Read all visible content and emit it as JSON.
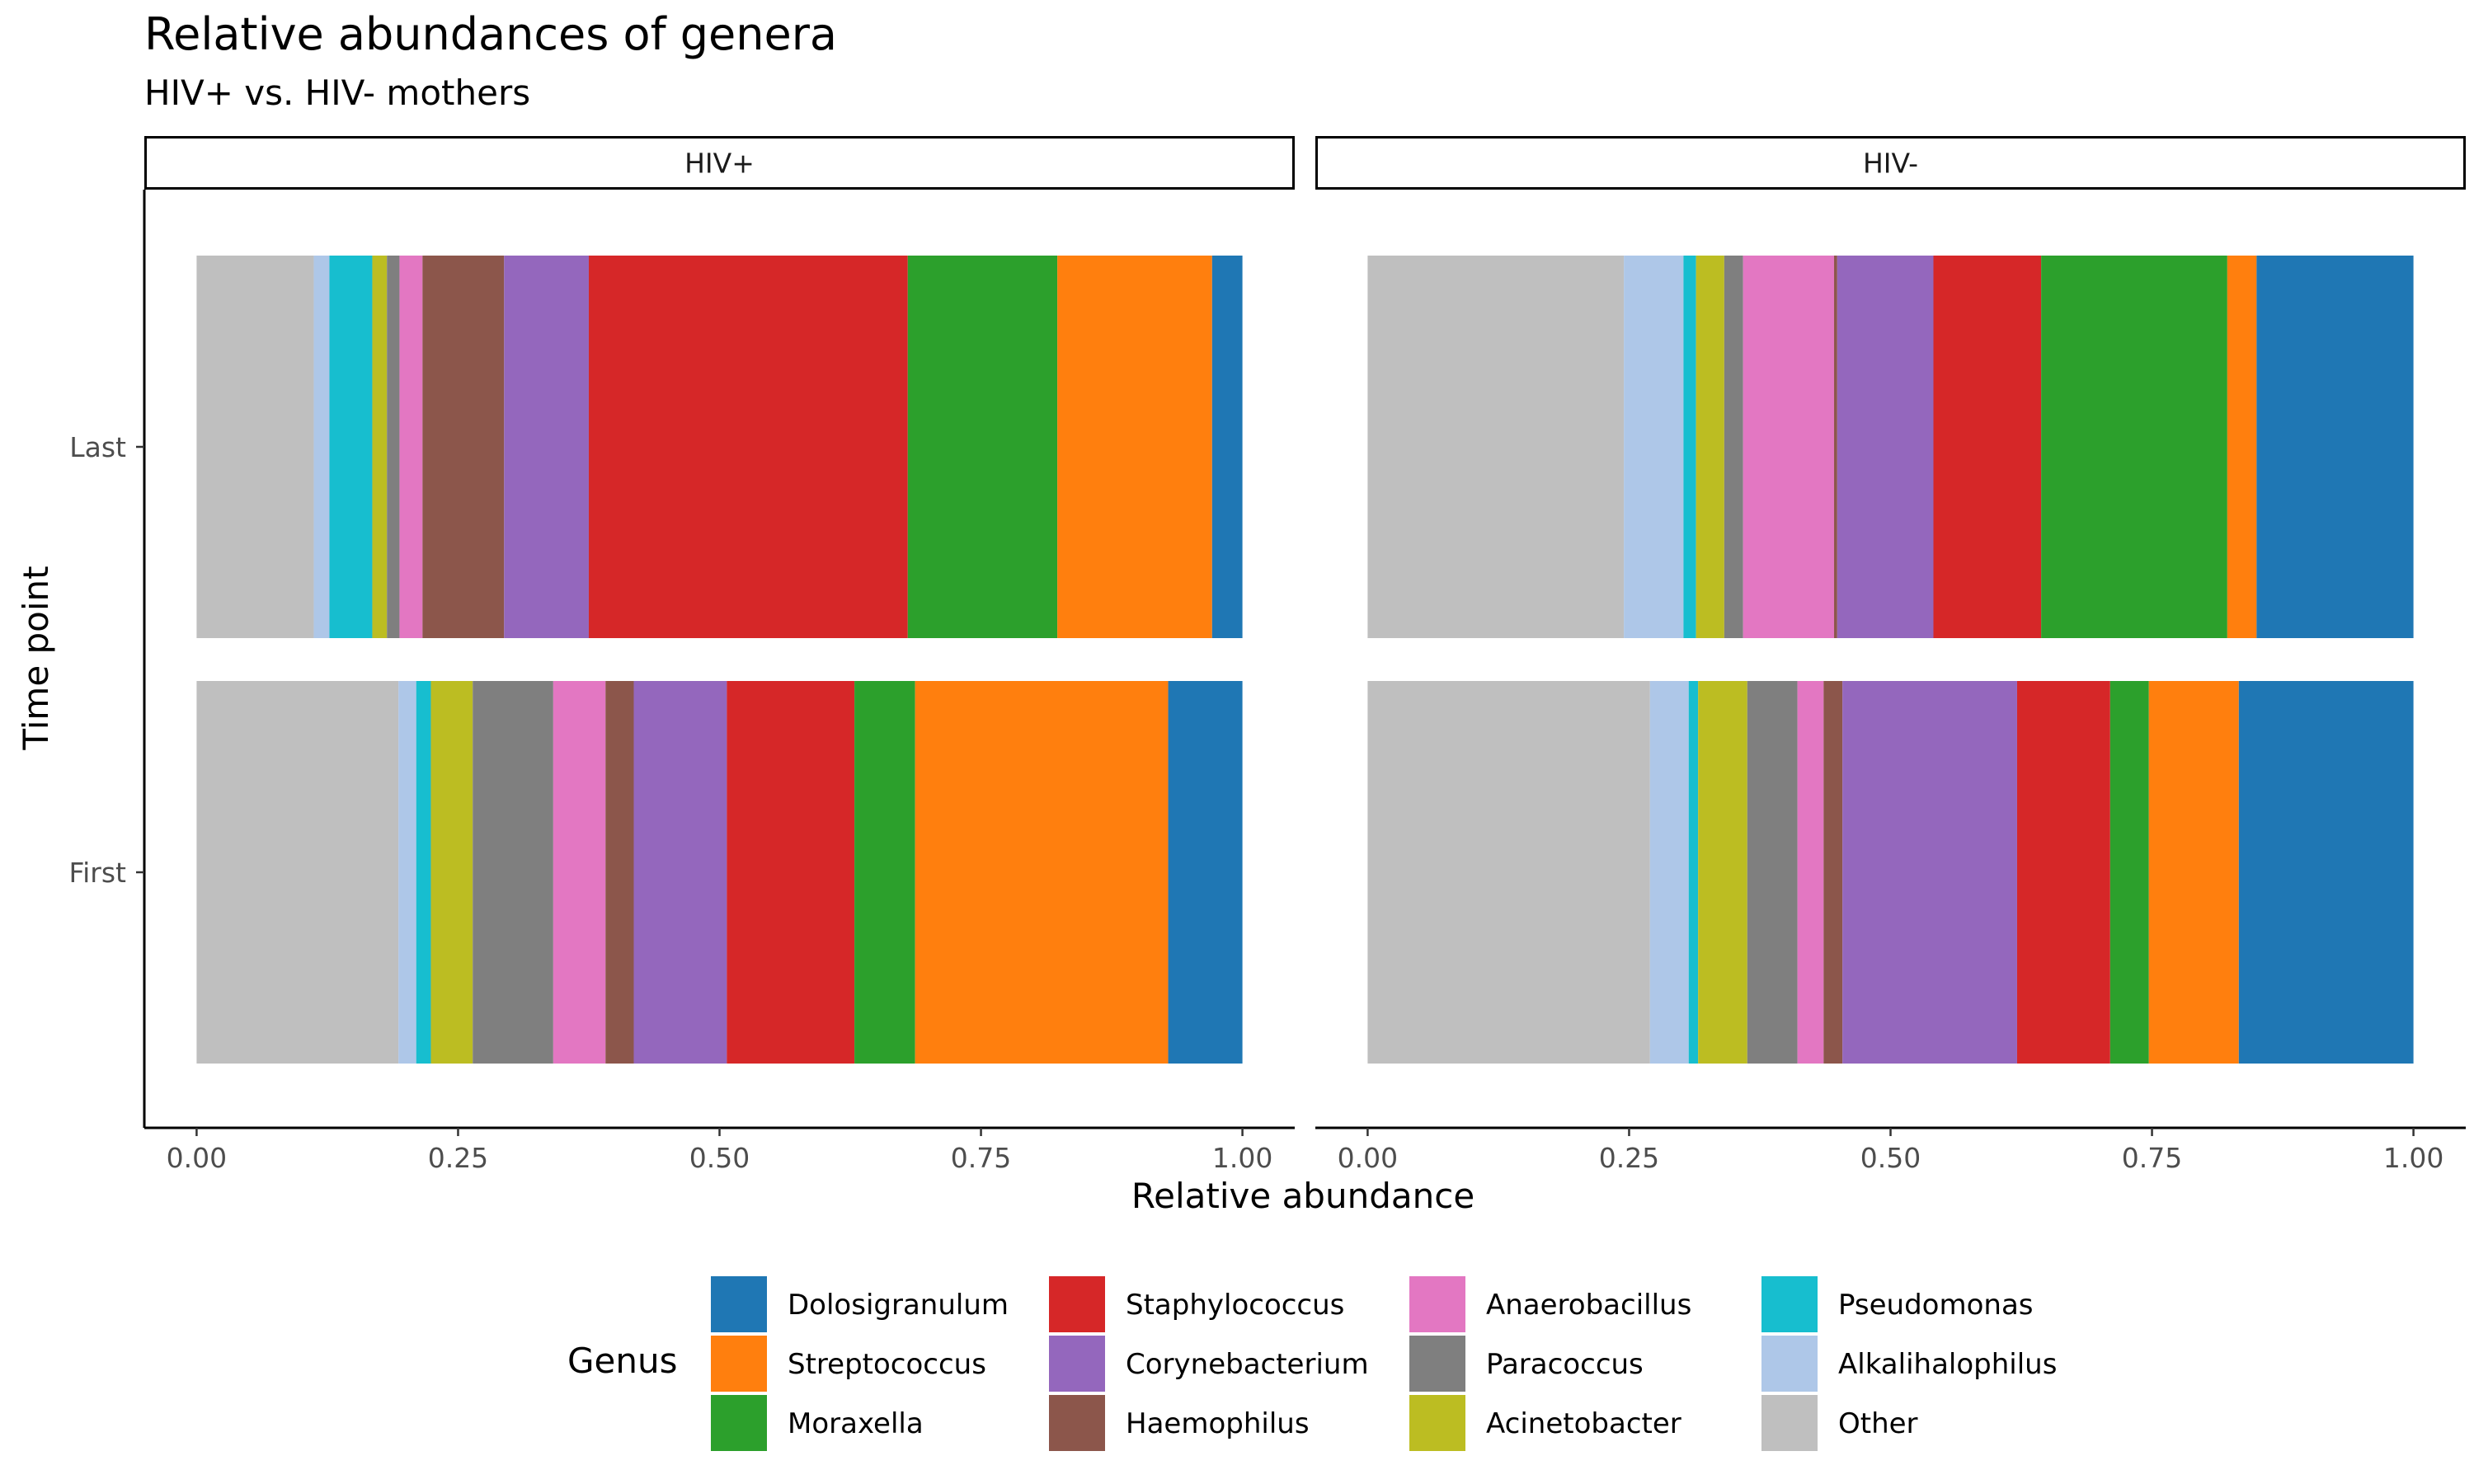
{
  "chart_data": {
    "type": "bar",
    "orientation": "horizontal",
    "stacked": true,
    "title": "Relative abundances of genera",
    "subtitle": "HIV+ vs. HIV- mothers",
    "xlabel": "Relative abundance",
    "ylabel": "Time point",
    "xlim": [
      0,
      1
    ],
    "x_ticks": [
      "0.00",
      "0.25",
      "0.50",
      "0.75",
      "1.00"
    ],
    "categories": [
      "Last",
      "First"
    ],
    "grid": false,
    "legend": {
      "title": "Genus",
      "position": "bottom"
    },
    "stack_order": [
      "Other",
      "Alkalihalophilus",
      "Pseudomonas",
      "Acinetobacter",
      "Paracoccus",
      "Anaerobacillus",
      "Haemophilus",
      "Corynebacterium",
      "Staphylococcus",
      "Moraxella",
      "Streptococcus",
      "Dolosigranulum"
    ],
    "genera": [
      {
        "name": "Dolosigranulum",
        "color": "#1f77b4"
      },
      {
        "name": "Streptococcus",
        "color": "#ff7f0e"
      },
      {
        "name": "Moraxella",
        "color": "#2ca02c"
      },
      {
        "name": "Staphylococcus",
        "color": "#d62728"
      },
      {
        "name": "Corynebacterium",
        "color": "#9467bd"
      },
      {
        "name": "Haemophilus",
        "color": "#8c564b"
      },
      {
        "name": "Anaerobacillus",
        "color": "#e377c2"
      },
      {
        "name": "Paracoccus",
        "color": "#7f7f7f"
      },
      {
        "name": "Acinetobacter",
        "color": "#bcbd22"
      },
      {
        "name": "Pseudomonas",
        "color": "#17becf"
      },
      {
        "name": "Alkalihalophilus",
        "color": "#aec7e8"
      },
      {
        "name": "Other",
        "color": "#bfbfbf"
      }
    ],
    "facets": [
      {
        "label": "HIV+",
        "rows": [
          {
            "category": "Last",
            "values": {
              "Other": 0.112,
              "Alkalihalophilus": 0.015,
              "Pseudomonas": 0.041,
              "Acinetobacter": 0.014,
              "Paracoccus": 0.012,
              "Anaerobacillus": 0.022,
              "Haemophilus": 0.078,
              "Corynebacterium": 0.081,
              "Staphylococcus": 0.305,
              "Moraxella": 0.143,
              "Streptococcus": 0.148,
              "Dolosigranulum": 0.029
            }
          },
          {
            "category": "First",
            "values": {
              "Other": 0.193,
              "Alkalihalophilus": 0.017,
              "Pseudomonas": 0.014,
              "Acinetobacter": 0.04,
              "Paracoccus": 0.077,
              "Anaerobacillus": 0.05,
              "Haemophilus": 0.027,
              "Corynebacterium": 0.089,
              "Staphylococcus": 0.122,
              "Moraxella": 0.058,
              "Streptococcus": 0.242,
              "Dolosigranulum": 0.071
            }
          }
        ]
      },
      {
        "label": "HIV-",
        "rows": [
          {
            "category": "Last",
            "values": {
              "Other": 0.245,
              "Alkalihalophilus": 0.057,
              "Pseudomonas": 0.012,
              "Acinetobacter": 0.027,
              "Paracoccus": 0.018,
              "Anaerobacillus": 0.087,
              "Haemophilus": 0.003,
              "Corynebacterium": 0.092,
              "Staphylococcus": 0.103,
              "Moraxella": 0.178,
              "Streptococcus": 0.028,
              "Dolosigranulum": 0.15
            }
          },
          {
            "category": "First",
            "values": {
              "Other": 0.27,
              "Alkalihalophilus": 0.037,
              "Pseudomonas": 0.009,
              "Acinetobacter": 0.047,
              "Paracoccus": 0.048,
              "Anaerobacillus": 0.025,
              "Haemophilus": 0.018,
              "Corynebacterium": 0.167,
              "Staphylococcus": 0.089,
              "Moraxella": 0.037,
              "Streptococcus": 0.086,
              "Dolosigranulum": 0.167
            }
          }
        ]
      }
    ]
  }
}
